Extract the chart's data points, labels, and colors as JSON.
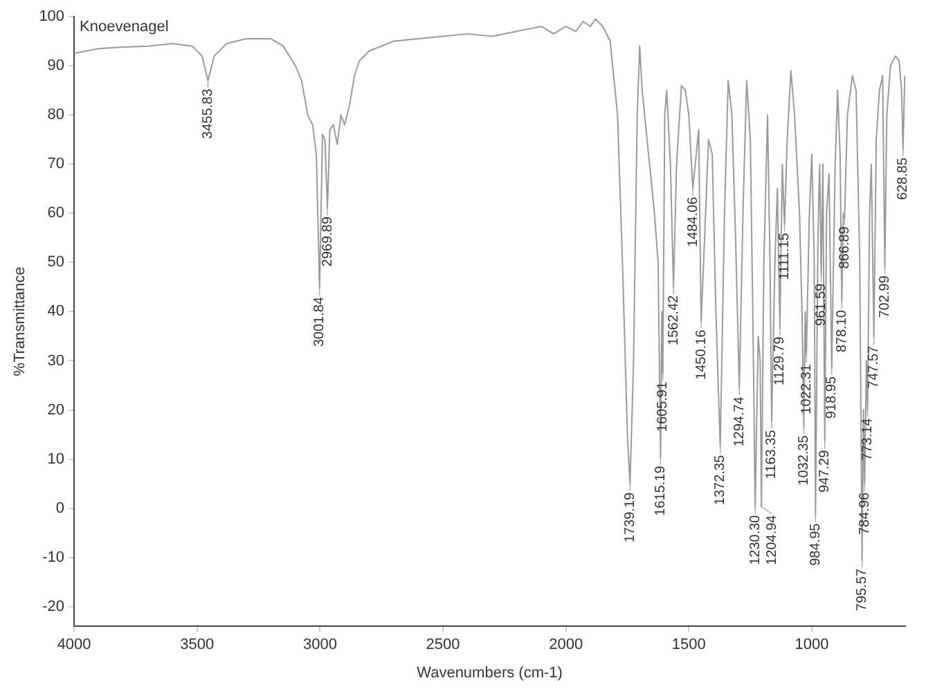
{
  "chart_data": {
    "type": "line",
    "title": "Knoevenagel",
    "xlabel": "Wavenumbers (cm-1)",
    "ylabel": "%Transmittance",
    "xlim": [
      4000,
      620
    ],
    "xticks": [
      4000,
      3500,
      3000,
      2500,
      2000,
      1500,
      1000
    ],
    "ylim": [
      -24,
      100
    ],
    "yticks": [
      -20,
      -10,
      0,
      10,
      20,
      30,
      40,
      50,
      60,
      70,
      80,
      90,
      100
    ],
    "grid": false,
    "legend": false,
    "marker": "none",
    "line_style": "solid",
    "series": [
      {
        "color": "#9a9a9a",
        "x": [
          4000,
          3900,
          3800,
          3700,
          3600,
          3520,
          3480,
          3455.83,
          3430,
          3380,
          3300,
          3200,
          3150,
          3100,
          3075,
          3050,
          3030,
          3015,
          3001.84,
          2990,
          2980,
          2969.89,
          2960,
          2945,
          2930,
          2915,
          2900,
          2880,
          2860,
          2840,
          2800,
          2700,
          2600,
          2500,
          2400,
          2300,
          2200,
          2100,
          2050,
          2000,
          1960,
          1930,
          1900,
          1880,
          1850,
          1820,
          1790,
          1770,
          1750,
          1739.19,
          1725,
          1710,
          1700,
          1690,
          1660,
          1640,
          1625,
          1615.19,
          1610,
          1605.91,
          1598,
          1590,
          1575,
          1562.42,
          1550,
          1530,
          1515,
          1500,
          1484.06,
          1470,
          1460,
          1450.16,
          1440,
          1420,
          1405,
          1390,
          1372.35,
          1355,
          1340,
          1325,
          1310,
          1294.74,
          1280,
          1265,
          1250,
          1240,
          1230.3,
          1218,
          1210,
          1204.94,
          1195,
          1180,
          1170,
          1163.35,
          1150,
          1140,
          1129.79,
          1120,
          1111.15,
          1100,
          1085,
          1070,
          1050,
          1040,
          1032.35,
          1027,
          1022.31,
          1010,
          1000,
          990,
          984.95,
          975,
          968,
          961.59,
          955,
          947.29,
          940,
          930,
          918.95,
          905,
          895,
          885,
          878.1,
          872,
          866.89,
          855,
          835,
          820,
          805,
          795.57,
          790,
          784.96,
          778,
          773.14,
          765,
          758,
          747.57,
          738,
          725,
          712,
          702.99,
          695,
          680,
          660,
          645,
          635,
          628.85,
          622
        ],
        "values": [
          92.5,
          93.5,
          93.8,
          94,
          94.5,
          94,
          92,
          87,
          92,
          94.5,
          95.5,
          95.5,
          94,
          90,
          87,
          80,
          78,
          72,
          44.7,
          76,
          75,
          61,
          77,
          78,
          74,
          80,
          78,
          82,
          88,
          91,
          93,
          95,
          95.5,
          96,
          96.5,
          96,
          97,
          98,
          96.5,
          98,
          97,
          99,
          98,
          99.5,
          98,
          95,
          80,
          50,
          15,
          4.9,
          30,
          80,
          94,
          85,
          70,
          60,
          50,
          10.3,
          40,
          27.4,
          80,
          85,
          70,
          45,
          70,
          86,
          85,
          80,
          65,
          72,
          77,
          38,
          50,
          75,
          72,
          40,
          12.5,
          60,
          87,
          80,
          55,
          24.4,
          60,
          87,
          75,
          40,
          0.3,
          35,
          30,
          0.3,
          50,
          80,
          50,
          17.6,
          50,
          65,
          36.6,
          70,
          57.7,
          75,
          89,
          80,
          60,
          40,
          16.5,
          40,
          31,
          60,
          72,
          50,
          -1.4,
          55,
          70,
          47.4,
          70,
          13.5,
          60,
          68,
          28.5,
          70,
          85,
          72,
          42,
          60,
          59,
          80,
          88,
          85,
          50,
          -10.6,
          20,
          4.9,
          30,
          20,
          60,
          70,
          34.7,
          75,
          85,
          88,
          49,
          80,
          90,
          92,
          91,
          85,
          73,
          88
        ]
      }
    ],
    "annotations": [
      {
        "text": "3455.83",
        "x": 3455.83,
        "y": 87
      },
      {
        "text": "3001.84",
        "x": 3001.84,
        "y": 44.7
      },
      {
        "text": "2969.89",
        "x": 2969.89,
        "y": 61
      },
      {
        "text": "1739.19",
        "x": 1739.19,
        "y": 4.9
      },
      {
        "text": "1615.19",
        "x": 1615.19,
        "y": 10.3
      },
      {
        "text": "1605.91",
        "x": 1605.91,
        "y": 27.4
      },
      {
        "text": "1562.42",
        "x": 1562.42,
        "y": 45
      },
      {
        "text": "1484.06",
        "x": 1484.06,
        "y": 65
      },
      {
        "text": "1450.16",
        "x": 1450.16,
        "y": 38
      },
      {
        "text": "1372.35",
        "x": 1372.35,
        "y": 12.5
      },
      {
        "text": "1294.74",
        "x": 1294.74,
        "y": 24.4
      },
      {
        "text": "1230.30",
        "x": 1230.3,
        "y": 0.3
      },
      {
        "text": "1204.94",
        "x": 1204.94,
        "y": 0.3
      },
      {
        "text": "1163.35",
        "x": 1163.35,
        "y": 17.6
      },
      {
        "text": "1129.79",
        "x": 1129.79,
        "y": 36.6
      },
      {
        "text": "1111.15",
        "x": 1111.15,
        "y": 57.7
      },
      {
        "text": "1032.35",
        "x": 1032.35,
        "y": 16.5
      },
      {
        "text": "1022.31",
        "x": 1022.31,
        "y": 31
      },
      {
        "text": "984.95",
        "x": 984.95,
        "y": -1.4
      },
      {
        "text": "961.59",
        "x": 961.59,
        "y": 47.4
      },
      {
        "text": "947.29",
        "x": 947.29,
        "y": 13.5
      },
      {
        "text": "918.95",
        "x": 918.95,
        "y": 28.5
      },
      {
        "text": "878.10",
        "x": 878.1,
        "y": 42
      },
      {
        "text": "866.89",
        "x": 866.89,
        "y": 59
      },
      {
        "text": "795.57",
        "x": 795.57,
        "y": -10.6
      },
      {
        "text": "784.96",
        "x": 784.96,
        "y": 4.9
      },
      {
        "text": "773.14",
        "x": 773.14,
        "y": 20
      },
      {
        "text": "747.57",
        "x": 747.57,
        "y": 34.7
      },
      {
        "text": "702.99",
        "x": 702.99,
        "y": 49
      },
      {
        "text": "628.85",
        "x": 628.85,
        "y": 73
      }
    ]
  }
}
